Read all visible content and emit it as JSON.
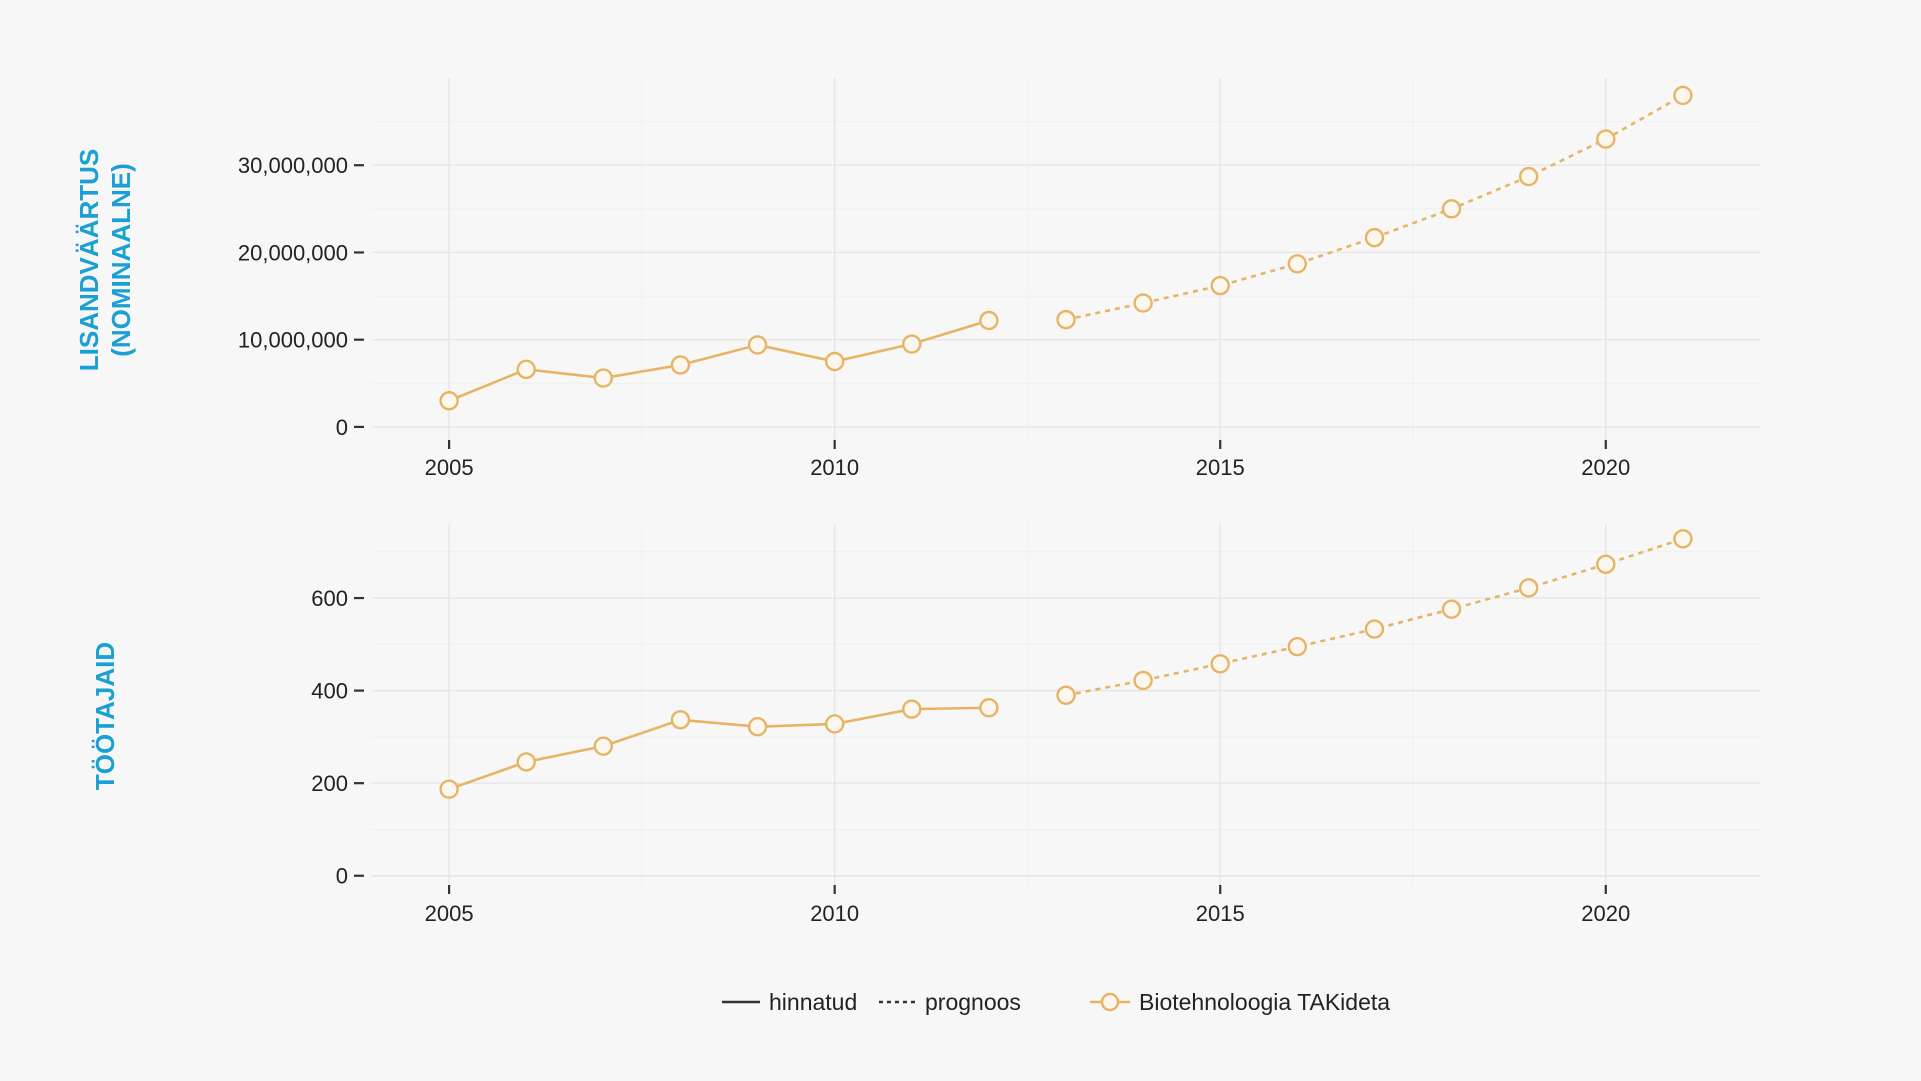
{
  "colors": {
    "series": "#e7b465",
    "axis_label": "#1aa0d2",
    "background": "#f7f7f7"
  },
  "legend": {
    "estimated_label": "hinnatud",
    "forecast_label": "prognoos",
    "series_label": "Biotehnoloogia TAKideta",
    "position": "bottom"
  },
  "chart_data": [
    {
      "type": "line",
      "ylabel_lines": [
        "LISANDVÄÄRTUS",
        "(NOMINAALNE)"
      ],
      "xlim": [
        2004,
        2022
      ],
      "ylim": [
        -1500000,
        40000000
      ],
      "x_ticks": [
        2005,
        2010,
        2015,
        2020
      ],
      "x_tick_labels": [
        "2005",
        "2010",
        "2015",
        "2020"
      ],
      "y_ticks": [
        0,
        10000000,
        20000000,
        30000000
      ],
      "y_tick_labels": [
        "0",
        "10,000,000",
        "20,000,000",
        "30,000,000"
      ],
      "grid": true,
      "series": [
        {
          "style": "solid",
          "x": [
            2005,
            2006,
            2007,
            2008,
            2009,
            2010,
            2011,
            2012
          ],
          "values": [
            3000000,
            6600000,
            5600000,
            7100000,
            9400000,
            7500000,
            9500000,
            12200000
          ]
        },
        {
          "style": "dashed",
          "x": [
            2013,
            2014,
            2015,
            2016,
            2017,
            2018,
            2019,
            2020,
            2021
          ],
          "values": [
            12300000,
            14200000,
            16200000,
            18700000,
            21700000,
            25000000,
            28700000,
            33000000,
            38000000
          ]
        }
      ]
    },
    {
      "type": "line",
      "ylabel_lines": [
        "TÖÖTAJAID"
      ],
      "xlim": [
        2004,
        2022
      ],
      "ylim": [
        -20,
        760
      ],
      "x_ticks": [
        2005,
        2010,
        2015,
        2020
      ],
      "x_tick_labels": [
        "2005",
        "2010",
        "2015",
        "2020"
      ],
      "y_ticks": [
        0,
        200,
        400,
        600
      ],
      "y_tick_labels": [
        "0",
        "200",
        "400",
        "600"
      ],
      "grid": true,
      "series": [
        {
          "style": "solid",
          "x": [
            2005,
            2006,
            2007,
            2008,
            2009,
            2010,
            2011,
            2012
          ],
          "values": [
            187,
            246,
            280,
            337,
            322,
            328,
            360,
            363
          ]
        },
        {
          "style": "dashed",
          "x": [
            2013,
            2014,
            2015,
            2016,
            2017,
            2018,
            2019,
            2020,
            2021
          ],
          "values": [
            390,
            422,
            458,
            495,
            533,
            576,
            622,
            673,
            728
          ]
        }
      ]
    }
  ]
}
